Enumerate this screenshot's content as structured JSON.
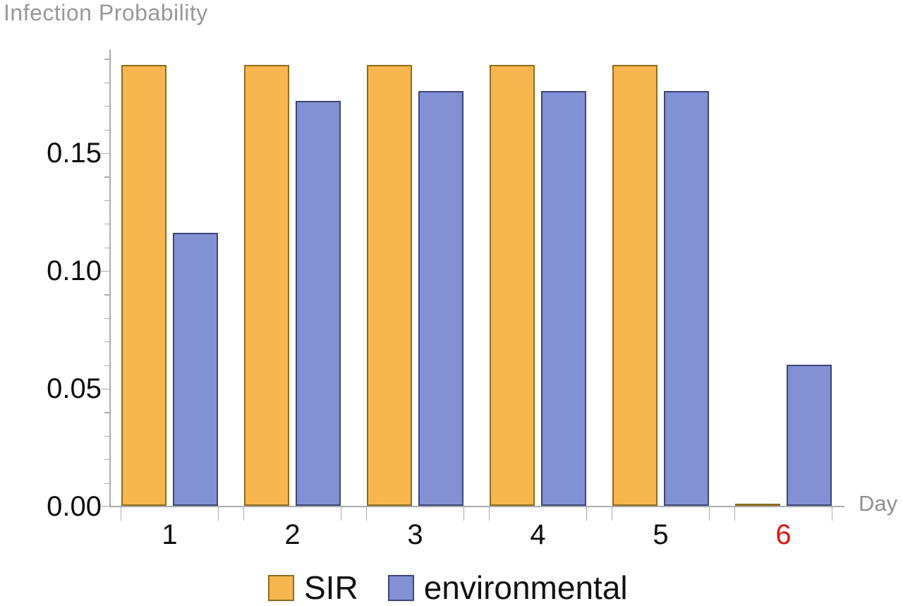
{
  "chart_data": {
    "type": "bar",
    "title": "Infection Probability",
    "xlabel": "Day",
    "ylabel": "Infection Probability",
    "categories": [
      "1",
      "2",
      "3",
      "4",
      "5",
      "6"
    ],
    "highlighted_category": {
      "label": "6",
      "color": "#e01511"
    },
    "series": [
      {
        "name": "SIR",
        "fill": "#f7b64e",
        "edge": "#8e6d1c",
        "values": [
          0.187,
          0.187,
          0.187,
          0.187,
          0.187,
          0.0005
        ]
      },
      {
        "name": "environmental",
        "fill": "#8290d4",
        "edge": "#3b4677",
        "values": [
          0.116,
          0.172,
          0.176,
          0.176,
          0.176,
          0.06
        ]
      }
    ],
    "ylim": [
      0,
      0.194
    ],
    "yticks": [
      {
        "v": 0.0,
        "label": "0.00"
      },
      {
        "v": 0.05,
        "label": "0.05"
      },
      {
        "v": 0.1,
        "label": "0.10"
      },
      {
        "v": 0.15,
        "label": "0.15"
      }
    ],
    "ytick_minor_step": 0.01,
    "grid": false,
    "legend_position": "bottom"
  },
  "style": {
    "axis_color": "#ababab",
    "tick_label_color": "#0d0d0d",
    "muted_label_color": "#989898",
    "background": "#ffffff"
  }
}
